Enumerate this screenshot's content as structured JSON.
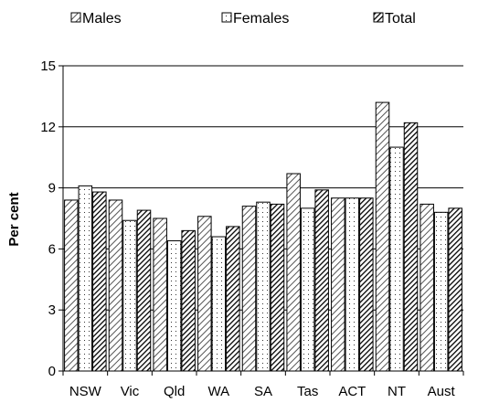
{
  "chart_data": {
    "type": "bar",
    "title": "",
    "xlabel": "",
    "ylabel": "Per cent",
    "ylim": [
      0,
      15
    ],
    "yticks": [
      0,
      3,
      6,
      9,
      12,
      15
    ],
    "grid": true,
    "legend_position": "top",
    "categories": [
      "NSW",
      "Vic",
      "Qld",
      "WA",
      "SA",
      "Tas",
      "ACT",
      "NT",
      "Aust"
    ],
    "series": [
      {
        "name": "Males",
        "values": [
          8.4,
          8.4,
          7.5,
          7.6,
          8.1,
          9.7,
          8.5,
          13.2,
          8.2
        ]
      },
      {
        "name": "Females",
        "values": [
          9.1,
          7.4,
          6.4,
          6.6,
          8.3,
          8.0,
          8.5,
          11.0,
          7.8
        ]
      },
      {
        "name": "Total",
        "values": [
          8.8,
          7.9,
          6.9,
          7.1,
          8.2,
          8.9,
          8.5,
          12.2,
          8.0
        ]
      }
    ]
  }
}
